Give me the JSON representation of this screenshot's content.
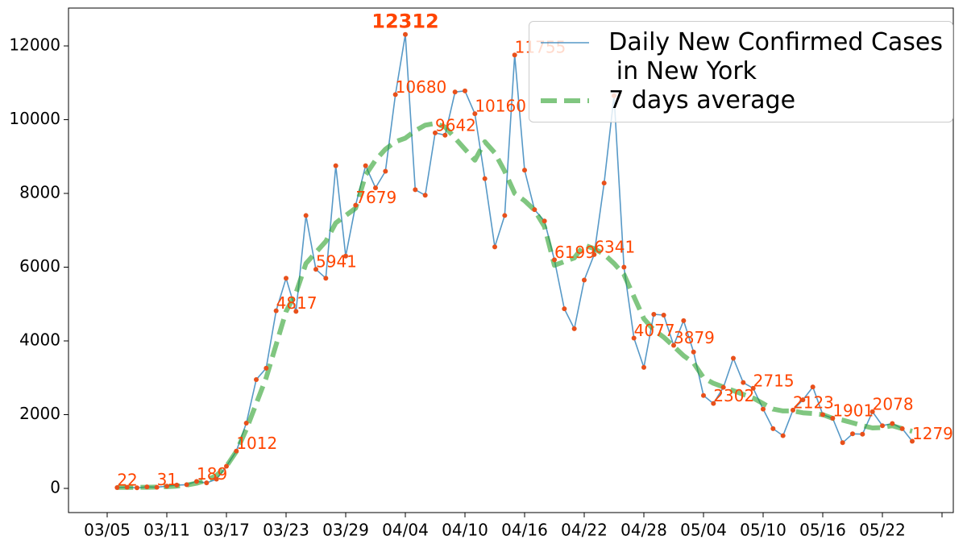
{
  "chart_data": {
    "type": "line",
    "categories": [
      "03/05",
      null,
      null,
      null,
      null,
      null,
      "03/11",
      null,
      null,
      null,
      null,
      null,
      "03/17",
      null,
      null,
      null,
      null,
      null,
      "03/23",
      null,
      null,
      null,
      null,
      null,
      "03/29",
      null,
      null,
      null,
      null,
      null,
      "04/04",
      null,
      null,
      null,
      null,
      null,
      "04/10",
      null,
      null,
      null,
      null,
      null,
      "04/16",
      null,
      null,
      null,
      null,
      null,
      "04/22",
      null,
      null,
      null,
      null,
      null,
      "04/28",
      null,
      null,
      null,
      null,
      null,
      "05/04",
      null,
      null,
      null,
      null,
      null,
      "05/10",
      null,
      null,
      null,
      null,
      null,
      "05/16",
      null,
      null,
      null,
      null,
      null,
      "05/22",
      null,
      null,
      null,
      null,
      null,
      null
    ],
    "series": [
      {
        "name": "Daily New Confirmed Cases\n in New York",
        "color": "#1f77b4",
        "marker_color": "#e8501b",
        "label_color": "#ff4500",
        "linestyle": "solid",
        "values": [
          null,
          22,
          30,
          15,
          40,
          31,
          60,
          90,
          100,
          189,
          150,
          250,
          600,
          1012,
          1770,
          2950,
          3260,
          4817,
          5700,
          4800,
          7400,
          5941,
          5700,
          8750,
          6300,
          7679,
          8750,
          8150,
          8600,
          10680,
          12312,
          8100,
          7950,
          9642,
          9580,
          10750,
          10780,
          10160,
          8400,
          6550,
          7400,
          11755,
          8630,
          7560,
          7250,
          6199,
          4870,
          4330,
          5650,
          6341,
          8280,
          10650,
          6000,
          4077,
          3280,
          4720,
          4700,
          3879,
          4550,
          3700,
          2520,
          2302,
          2740,
          3530,
          2870,
          2715,
          2150,
          1620,
          1430,
          2123,
          2400,
          2750,
          2000,
          1901,
          1240,
          1480,
          1470,
          2078,
          1700,
          1760,
          1620,
          1279,
          null,
          null,
          null
        ]
      },
      {
        "name": "7 days average",
        "color": "#2ca02c",
        "linestyle": "dashed",
        "values": [
          null,
          25,
          25,
          28,
          30,
          35,
          45,
          60,
          90,
          140,
          220,
          350,
          600,
          1000,
          1600,
          2300,
          3000,
          3900,
          4800,
          5300,
          6100,
          6400,
          6700,
          7200,
          7400,
          7600,
          8500,
          8900,
          9200,
          9400,
          9500,
          9700,
          9850,
          9900,
          9800,
          9500,
          9200,
          8900,
          9400,
          9100,
          8600,
          8000,
          7800,
          7550,
          7100,
          6050,
          6150,
          6250,
          6600,
          6500,
          6350,
          6100,
          5800,
          5200,
          4600,
          4300,
          4100,
          3850,
          3600,
          3400,
          3000,
          2850,
          2750,
          2650,
          2550,
          2450,
          2300,
          2150,
          2100,
          2100,
          2050,
          2030,
          2000,
          1900,
          1850,
          1780,
          1700,
          1640,
          1650,
          1700,
          1620,
          1550,
          null,
          null,
          null
        ]
      }
    ],
    "ylim": [
      -656,
      13027
    ],
    "yticks": [
      0,
      2000,
      4000,
      6000,
      8000,
      10000,
      12000
    ],
    "legend": "upper right"
  }
}
